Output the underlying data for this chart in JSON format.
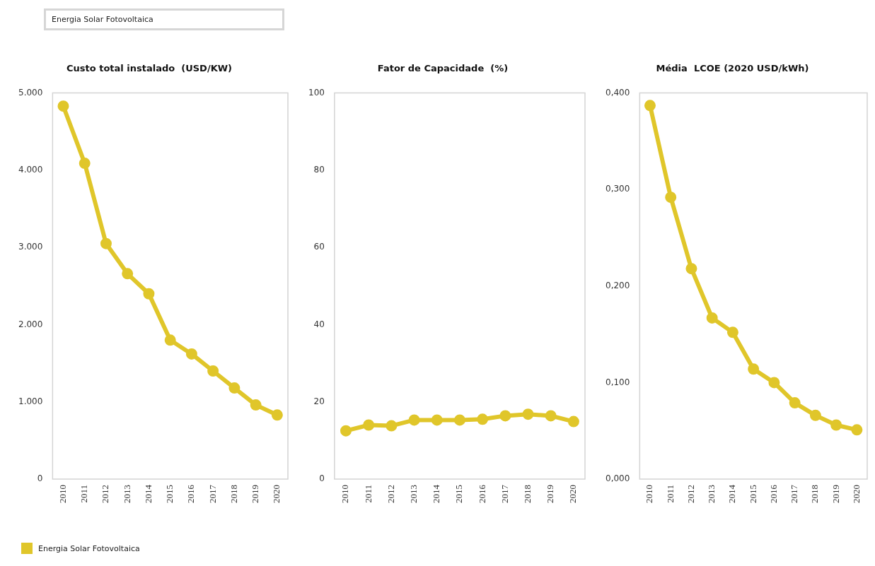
{
  "chart_data": [
    {
      "type": "line",
      "title": "Custo total instalado  (USD/KW)",
      "annotations": [
        "Energia Solar Fotovoltaica"
      ],
      "categories": [
        "2010",
        "2011",
        "2012",
        "2013",
        "2014",
        "2015",
        "2016",
        "2017",
        "2018",
        "2019",
        "2020"
      ],
      "series": [
        {
          "name": "Energia Solar Fotovoltaica",
          "color": "#e0c62a",
          "values": [
            4830,
            4090,
            3050,
            2660,
            2400,
            1800,
            1620,
            1400,
            1180,
            960,
            830
          ]
        }
      ],
      "ylim": [
        0,
        5000
      ],
      "yticks": [
        {
          "value": 0,
          "label": "0"
        },
        {
          "value": 1000,
          "label": "1.000"
        },
        {
          "value": 2000,
          "label": "2.000"
        },
        {
          "value": 3000,
          "label": "3.000"
        },
        {
          "value": 4000,
          "label": "4.000"
        },
        {
          "value": 5000,
          "label": "5.000"
        }
      ],
      "grid": false,
      "legend": "bottom left",
      "marker": "circle"
    },
    {
      "type": "line",
      "title": "Fator de Capacidade  (%)",
      "categories": [
        "2010",
        "2011",
        "2012",
        "2013",
        "2014",
        "2015",
        "2016",
        "2017",
        "2018",
        "2019",
        "2020"
      ],
      "series": [
        {
          "color": "#e0c62a",
          "values": [
            12.5,
            14.0,
            13.8,
            15.3,
            15.3,
            15.3,
            15.5,
            16.4,
            16.8,
            16.4,
            14.9
          ]
        }
      ],
      "ylim": [
        0,
        100
      ],
      "yticks": [
        0,
        20,
        40,
        60,
        80,
        100
      ],
      "grid": false,
      "marker": "circle"
    },
    {
      "type": "line",
      "title": "Média  LCOE (2020 USD/kWh)",
      "categories": [
        "2010",
        "2011",
        "2012",
        "2013",
        "2014",
        "2015",
        "2016",
        "2017",
        "2018",
        "2019",
        "2020"
      ],
      "series": [
        {
          "color": "#e0c62a",
          "values": [
            0.387,
            0.292,
            0.218,
            0.167,
            0.152,
            0.114,
            0.1,
            0.079,
            0.066,
            0.056,
            0.051
          ]
        }
      ],
      "ylim": [
        0,
        0.4
      ],
      "yticks": [
        {
          "value": 0,
          "label": "0,000"
        },
        {
          "value": 0.1,
          "label": "0,100"
        },
        {
          "value": 0.2,
          "label": "0,200"
        },
        {
          "value": 0.3,
          "label": "0,300"
        },
        {
          "value": 0.4,
          "label": "0,400"
        }
      ],
      "grid": false,
      "marker": "circle"
    }
  ]
}
